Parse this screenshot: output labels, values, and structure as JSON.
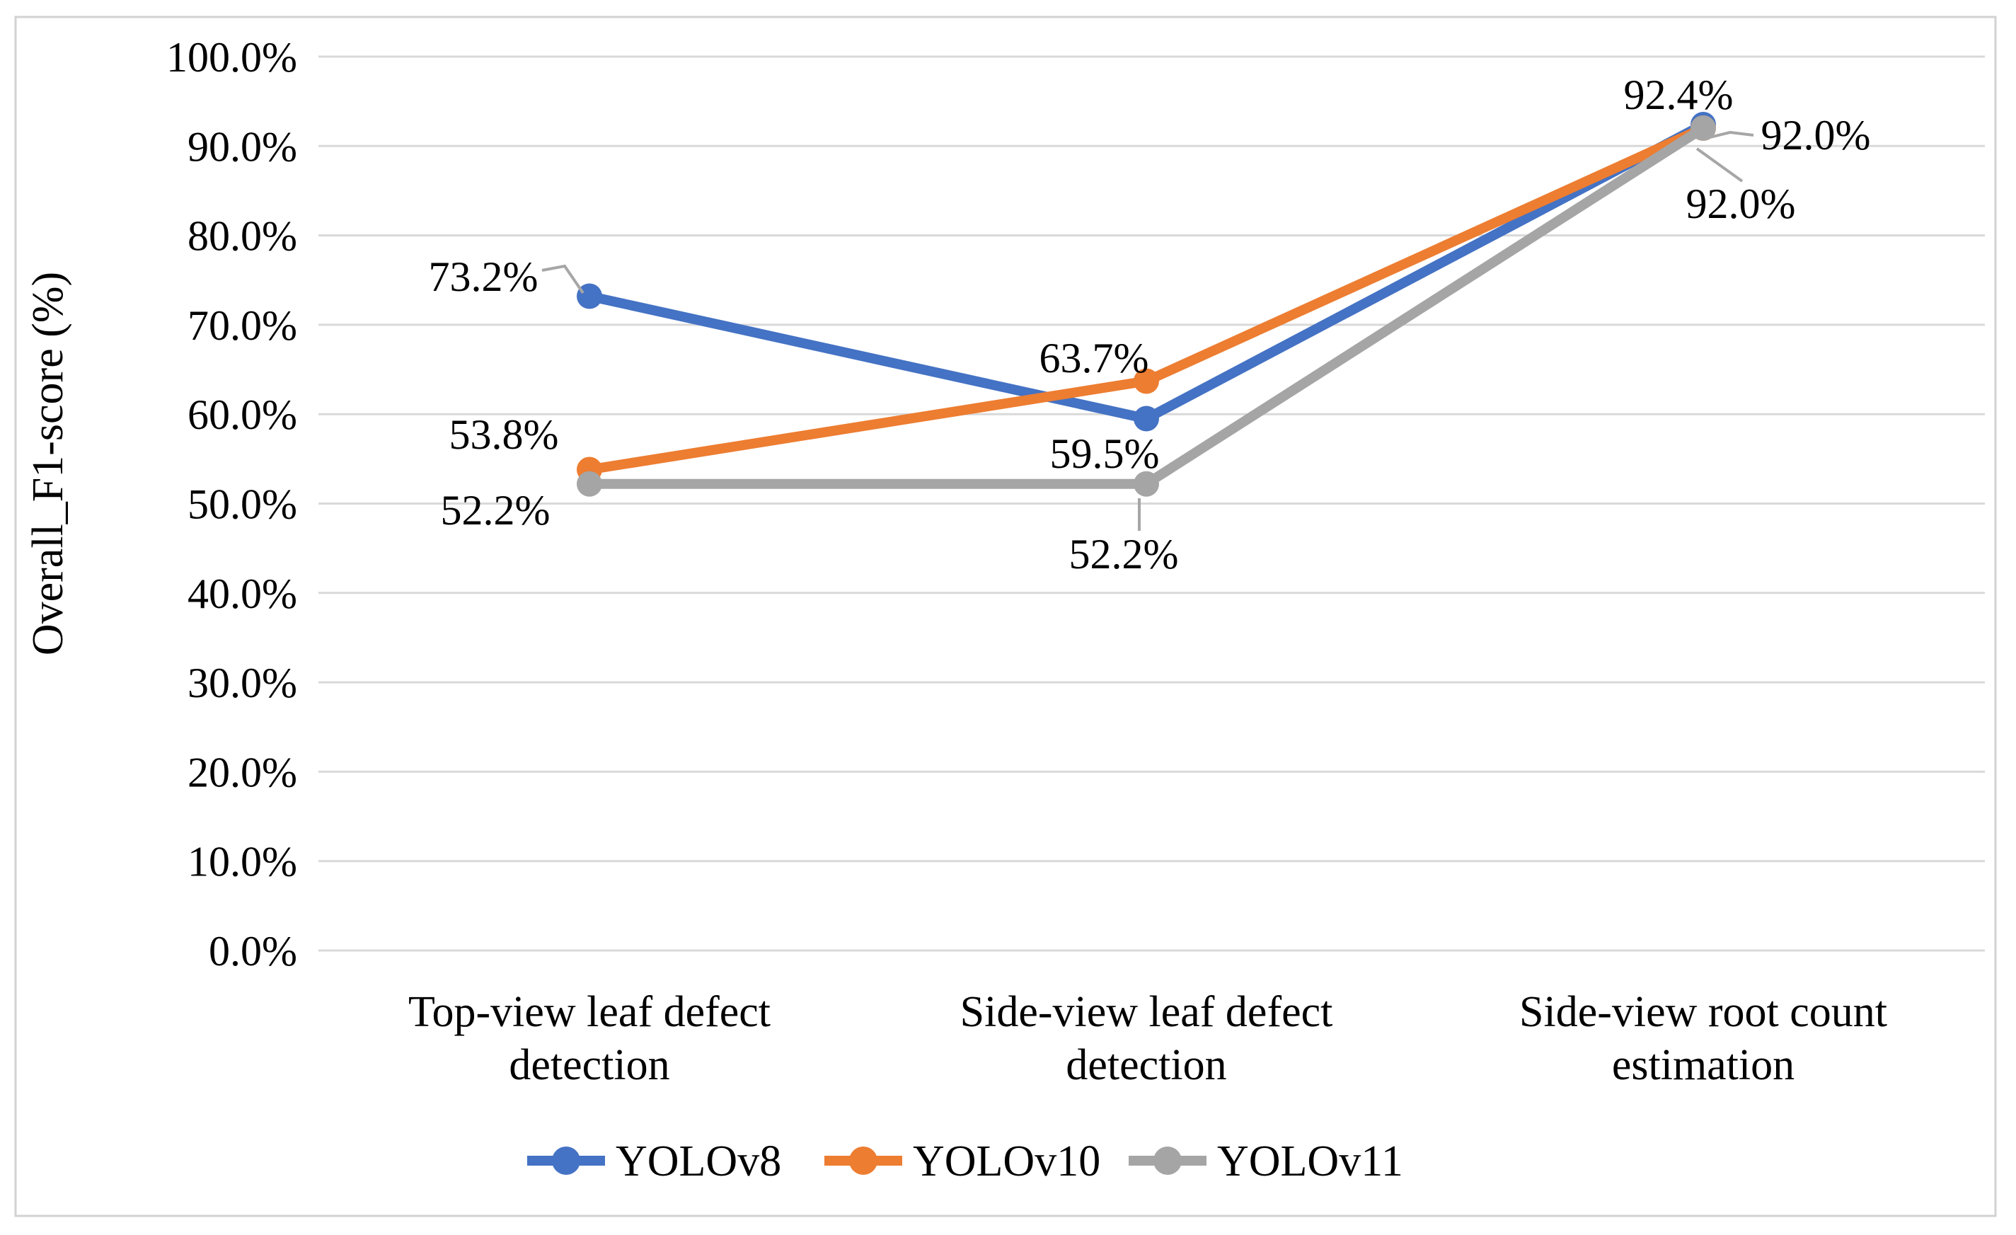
{
  "figure": {
    "background": "#ffffff",
    "border_color": "#d2d2d2"
  },
  "chart_data": {
    "type": "line",
    "title": "",
    "xlabel": "",
    "ylabel": "Overall_F1-score (%)",
    "ylim": [
      0,
      100
    ],
    "ytick_step": 10,
    "ytick_labels": [
      "100.0%",
      "90.0%",
      "80.0%",
      "70.0%",
      "60.0%",
      "50.0%",
      "40.0%",
      "30.0%",
      "20.0%",
      "10.0%",
      "0.0%"
    ],
    "grid": true,
    "gridline_color": "#d9d9d9",
    "leader_line_color": "#a6a6a6",
    "categories": [
      [
        "Top-view leaf defect",
        "detection"
      ],
      [
        "Side-view leaf defect",
        "detection"
      ],
      [
        "Side-view root count",
        "estimation"
      ]
    ],
    "series": [
      {
        "name": "YOLOv8",
        "color": "#4472C4",
        "values": [
          73.2,
          59.5,
          92.4
        ],
        "labels": [
          "73.2%",
          "59.5%",
          "92.4%"
        ]
      },
      {
        "name": "YOLOv10",
        "color": "#ED7D31",
        "values": [
          53.8,
          63.7,
          92.0
        ],
        "labels": [
          "53.8%",
          "63.7%",
          "92.0%"
        ]
      },
      {
        "name": "YOLOv11",
        "color": "#A5A5A5",
        "values": [
          52.2,
          52.2,
          92.0
        ],
        "labels": [
          "52.2%",
          "52.2%",
          "92.0%"
        ]
      }
    ],
    "legend_position": "bottom"
  }
}
